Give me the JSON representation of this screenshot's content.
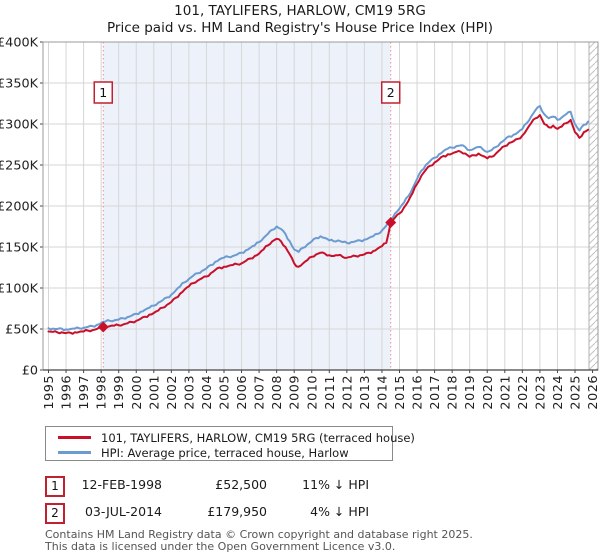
{
  "header": {
    "title": "101, TAYLIFERS, HARLOW, CM19 5RG",
    "subtitle": "Price paid vs. HM Land Registry's House Price Index (HPI)"
  },
  "chart_data": {
    "type": "line",
    "title": "101, TAYLIFERS, HARLOW, CM19 5RG",
    "subtitle": "Price paid vs. HM Land Registry's House Price Index (HPI)",
    "ylim_k": [
      0,
      400
    ],
    "x_range": [
      1995,
      2026
    ],
    "grid": true,
    "y_ticks": [
      {
        "value_k": 0,
        "label": "£0"
      },
      {
        "value_k": 50,
        "label": "£50K"
      },
      {
        "value_k": 100,
        "label": "£100K"
      },
      {
        "value_k": 150,
        "label": "£150K"
      },
      {
        "value_k": 200,
        "label": "£200K"
      },
      {
        "value_k": 250,
        "label": "£250K"
      },
      {
        "value_k": 300,
        "label": "£300K"
      },
      {
        "value_k": 350,
        "label": "£350K"
      },
      {
        "value_k": 400,
        "label": "£400K"
      }
    ],
    "x_ticks": [
      "1995",
      "1996",
      "1997",
      "1998",
      "1999",
      "2000",
      "2001",
      "2002",
      "2003",
      "2004",
      "2005",
      "2006",
      "2007",
      "2008",
      "2009",
      "2010",
      "2011",
      "2012",
      "2013",
      "2014",
      "2015",
      "2016",
      "2017",
      "2018",
      "2019",
      "2020",
      "2021",
      "2022",
      "2023",
      "2024",
      "2025",
      "2026"
    ],
    "series": [
      {
        "name": "HPI: Average price, terraced house, Harlow",
        "color": "#6c9bd2",
        "x_start": 1995.0,
        "x_step": 0.25,
        "values_k": [
          51,
          50.5,
          50,
          50.5,
          49.5,
          50,
          50.5,
          51,
          51.5,
          52.5,
          53.5,
          55,
          57.5,
          59,
          60,
          60.5,
          61.5,
          63,
          64.5,
          66.5,
          68.5,
          71,
          73.5,
          76,
          78.5,
          82,
          85,
          88.5,
          92,
          97,
          102,
          107,
          111,
          115,
          118,
          121,
          124,
          128,
          132,
          135,
          137,
          138,
          139,
          141,
          143,
          146,
          149,
          152,
          156,
          161,
          166,
          171,
          175,
          172,
          166,
          157,
          147,
          144,
          149,
          153,
          157,
          161,
          163,
          161,
          158,
          157,
          158,
          156,
          155,
          156,
          157,
          158,
          159,
          161,
          163,
          166,
          170,
          176,
          184,
          191,
          197,
          204,
          212,
          222,
          233,
          243,
          250,
          255,
          259,
          263,
          267,
          270,
          271,
          273,
          274,
          272,
          268,
          270,
          272,
          269,
          266,
          268,
          272,
          277,
          281,
          285,
          287,
          290,
          294,
          301,
          309,
          317,
          322,
          312,
          307,
          309,
          305,
          308,
          312,
          315,
          300,
          292,
          299,
          303
        ]
      },
      {
        "name": "101, TAYLIFERS, HARLOW, CM19 5RG (terraced house)",
        "color": "#c8102a",
        "x_start": 1995.0,
        "x_step": 0.25,
        "values_k": [
          47,
          46.5,
          46,
          46,
          45,
          45.5,
          46,
          46.5,
          47,
          48,
          48.5,
          50,
          51.5,
          52.5,
          53.5,
          54,
          54.5,
          55.5,
          57,
          58.5,
          60,
          62.5,
          65,
          67.5,
          69.5,
          72.5,
          76,
          79.5,
          83,
          88,
          93,
          98,
          102,
          106,
          109,
          112,
          114,
          118,
          122,
          125,
          126,
          127,
          128,
          129,
          130,
          133,
          136,
          139,
          142,
          147,
          152,
          157,
          160,
          157,
          150,
          141,
          130,
          126,
          130,
          134,
          138,
          141,
          143,
          142,
          140,
          139,
          140,
          138,
          137,
          138,
          139,
          140,
          141,
          143,
          145,
          148,
          151,
          155,
          180,
          186,
          191,
          198,
          206,
          216,
          227,
          237,
          244,
          249,
          253,
          257,
          261,
          263,
          264,
          266,
          266,
          264,
          260,
          262,
          264,
          261,
          258,
          260,
          264,
          269,
          273,
          277,
          279,
          282,
          286,
          293,
          301,
          307,
          311,
          300,
          296,
          298,
          294,
          297,
          301,
          305,
          290,
          283,
          290,
          293
        ]
      }
    ],
    "transactions": [
      {
        "label": "1",
        "date": "12-FEB-1998",
        "year": 1998.12,
        "price": "£52,500",
        "price_k": 52.5,
        "hpi_note": "11% ↓ HPI"
      },
      {
        "label": "2",
        "date": "03-JUL-2014",
        "year": 2014.5,
        "price": "£179,950",
        "price_k": 179.95,
        "hpi_note": "4% ↓ HPI"
      }
    ],
    "shaded_span_years": [
      1998.12,
      2014.5
    ],
    "colors": {
      "shaded_span": "#edf2fa",
      "dashed_event_line": "#f28c8c",
      "grid": "#d6d6d6",
      "plot_border": "#9a9a9a",
      "axis": "#444444",
      "hatch": "#c2c2c2",
      "marker_box_border": "#c02030"
    },
    "legend_position": "bottom-left"
  },
  "legend": {
    "items": [
      {
        "label": "101, TAYLIFERS, HARLOW, CM19 5RG (terraced house)",
        "color": "#c8102a"
      },
      {
        "label": "HPI: Average price, terraced house, Harlow",
        "color": "#6c9bd2"
      }
    ]
  },
  "footer": {
    "line1": "Contains HM Land Registry data © Crown copyright and database right 2025.",
    "line2": "This data is licensed under the Open Government Licence v3.0."
  }
}
